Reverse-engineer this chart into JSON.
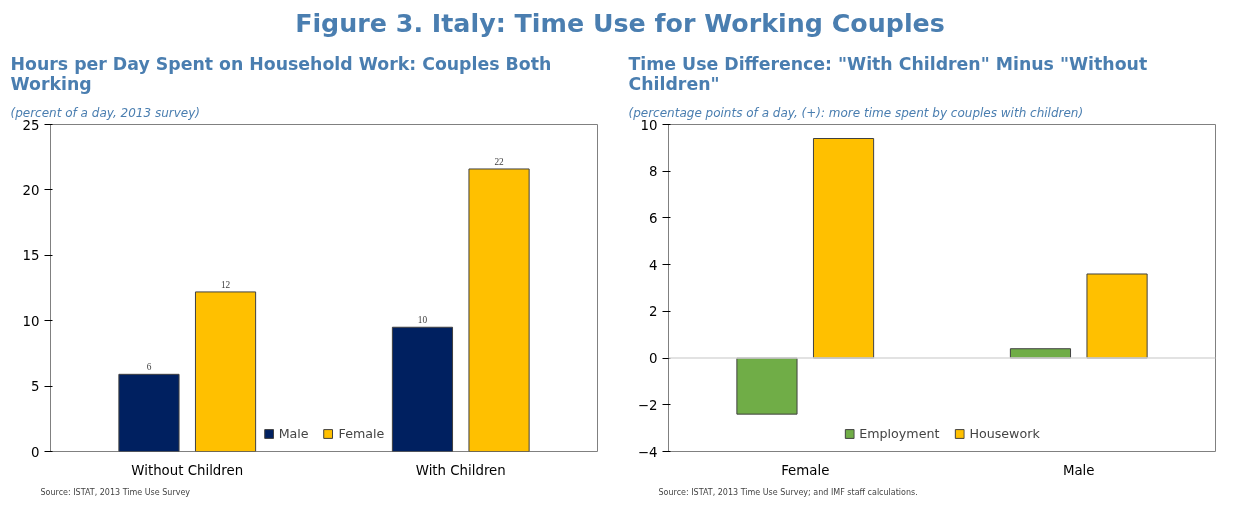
{
  "chart_data": [
    {
      "type": "bar",
      "title": "Hours per Day Spent on Household Work: Couples Both Working",
      "subtitle": "(percent of a day, 2013 survey)",
      "categories": [
        "Without Children",
        "With Children"
      ],
      "series": [
        {
          "name": "Male",
          "color": "#002060",
          "values": [
            5.9,
            9.5
          ],
          "value_labels": [
            "6",
            "10"
          ]
        },
        {
          "name": "Female",
          "color": "#ffc000",
          "values": [
            12.2,
            21.6
          ],
          "value_labels": [
            "12",
            "22"
          ]
        }
      ],
      "ylim": [
        0,
        25
      ],
      "yticks": [
        0,
        5,
        10,
        15,
        20,
        25
      ],
      "grid": false,
      "legend": "bottom",
      "annotations": [
        "Figure 3. Italy: Time Use for Working Couples",
        "Source: ISTAT, 2013 Time Use Survey"
      ]
    },
    {
      "type": "bar",
      "title": "Time Use Difference: \"With Children\" Minus \"Without Children\"",
      "subtitle": "(percentage points of a day, (+): more time spent by couples with children)",
      "categories": [
        "Female",
        "Male"
      ],
      "series": [
        {
          "name": "Employment",
          "color": "#70ad47",
          "values": [
            -2.4,
            0.4
          ]
        },
        {
          "name": "Housework",
          "color": "#ffc000",
          "values": [
            9.4,
            3.6
          ]
        }
      ],
      "ylim": [
        -4,
        10
      ],
      "yticks": [
        -4,
        -2,
        0,
        2,
        4,
        6,
        8,
        10
      ],
      "grid": false,
      "legend": "bottom",
      "ref_lines": [
        {
          "axis": "y",
          "value": 0,
          "color": "#d9d9d9"
        }
      ],
      "annotations": [
        "Source: ISTAT, 2013 Time Use Survey; and IMF staff calculations."
      ]
    }
  ]
}
